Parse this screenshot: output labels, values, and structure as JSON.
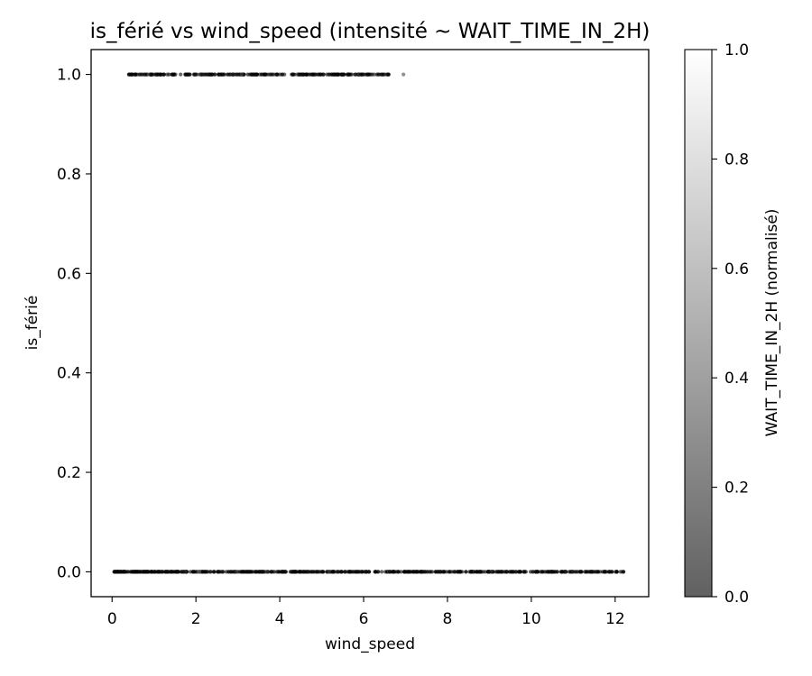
{
  "chart_data": {
    "type": "scatter",
    "title": "is_férié vs wind_speed (intensité ~ WAIT_TIME_IN_2H)",
    "xlabel": "wind_speed",
    "ylabel": "is_férié",
    "xlim": [
      -0.5,
      12.8
    ],
    "ylim": [
      -0.05,
      1.05
    ],
    "x_ticks": [
      0,
      2,
      4,
      6,
      8,
      10,
      12
    ],
    "y_ticks": [
      0.0,
      0.2,
      0.4,
      0.6,
      0.8,
      1.0
    ],
    "grid": false,
    "series": [
      {
        "y": 1.0,
        "x_range": [
          0.4,
          6.6
        ],
        "outliers_x": [
          6.95
        ],
        "intensity": "mostly dark (near 0), a few lighter"
      },
      {
        "y": 0.0,
        "x_range": [
          0.05,
          12.2
        ],
        "intensity": "mostly dark (near 0)"
      }
    ],
    "colorbar": {
      "label": "WAIT_TIME_IN_2H (normalisé)",
      "range": [
        0.0,
        1.0
      ],
      "ticks": [
        0.0,
        0.2,
        0.4,
        0.6,
        0.8,
        1.0
      ],
      "colormap": "gray (dark at 0, white at 1)"
    }
  }
}
